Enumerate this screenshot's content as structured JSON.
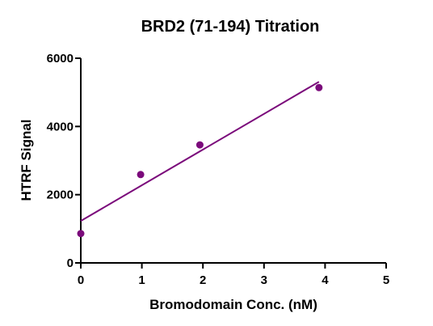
{
  "chart_data": {
    "type": "scatter",
    "title": "BRD2 (71-194) Titration",
    "xlabel": "Bromodomain Conc. (nM)",
    "ylabel": "HTRF Signal",
    "xlim": [
      0,
      5
    ],
    "ylim": [
      0,
      6000
    ],
    "x_ticks": [
      0,
      1,
      2,
      3,
      4,
      5
    ],
    "y_ticks": [
      0,
      2000,
      4000,
      6000
    ],
    "x_tick_labels": [
      "0",
      "1",
      "2",
      "3",
      "4",
      "5"
    ],
    "y_tick_labels": [
      "0",
      "2000",
      "4000",
      "6000"
    ],
    "grid": false,
    "legend": "none",
    "series": [
      {
        "points": [
          {
            "x": 0,
            "y": 860
          },
          {
            "x": 0.98,
            "y": 2590
          },
          {
            "x": 1.95,
            "y": 3460
          },
          {
            "x": 3.9,
            "y": 5140
          }
        ],
        "marker_color": "#7b0a7b"
      }
    ],
    "fit_line": {
      "x": [
        0,
        3.9
      ],
      "y": [
        1230,
        5310
      ],
      "color": "#7b0a7b"
    }
  }
}
